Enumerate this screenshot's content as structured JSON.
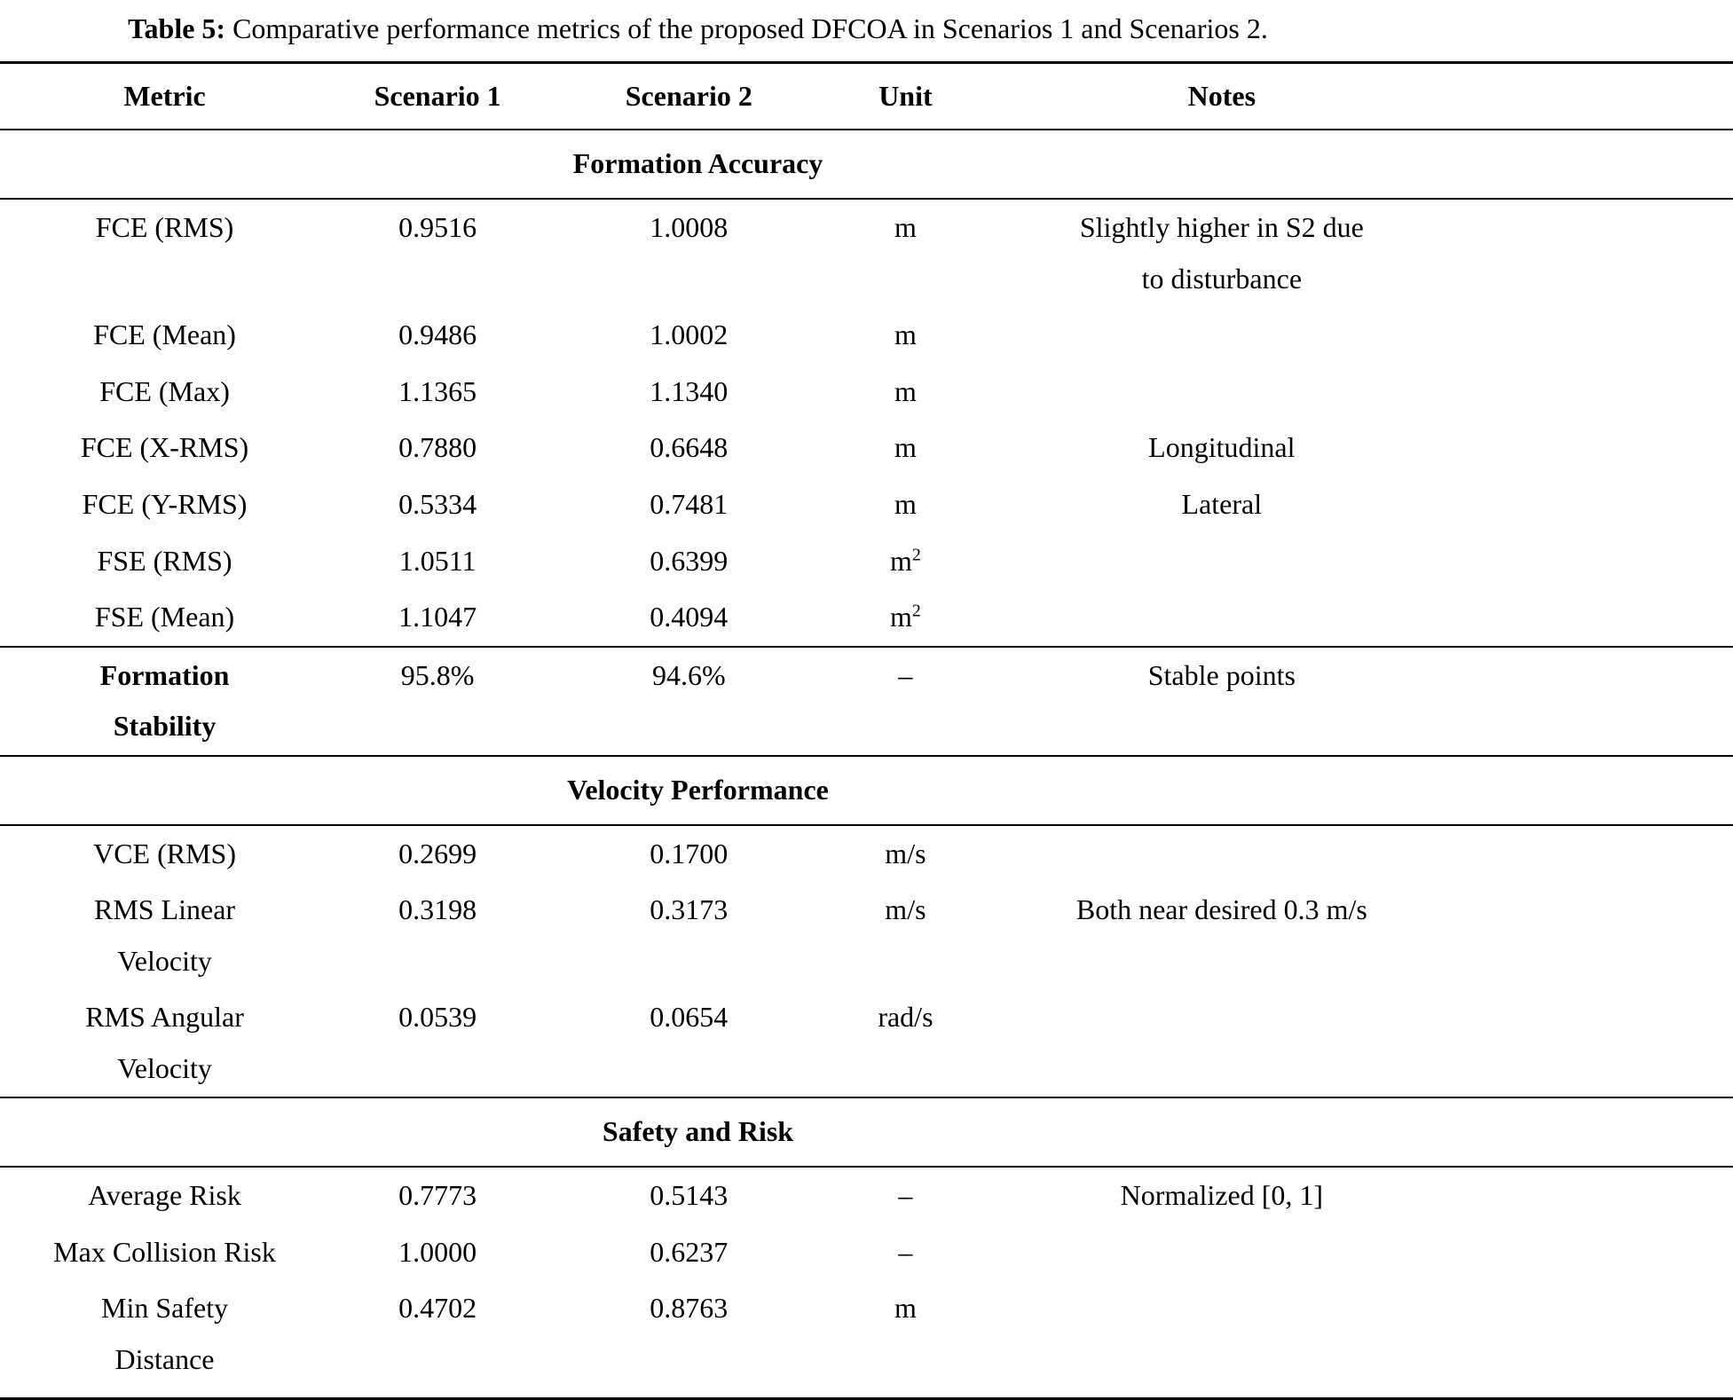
{
  "caption": {
    "label": "Table 5:",
    "text": "Comparative performance metrics of the proposed DFCOA in Scenarios 1 and Scenarios 2."
  },
  "columns": [
    "Metric",
    "Scenario 1",
    "Scenario 2",
    "Unit",
    "Notes"
  ],
  "sections": [
    {
      "title": "Formation Accuracy",
      "rows": [
        {
          "metric": "FCE (RMS)",
          "s1": "0.9516",
          "s2": "1.0008",
          "unit": "m",
          "note": "Slightly higher in S2 due\nto disturbance"
        },
        {
          "metric": "FCE (Mean)",
          "s1": "0.9486",
          "s2": "1.0002",
          "unit": "m",
          "note": ""
        },
        {
          "metric": "FCE (Max)",
          "s1": "1.1365",
          "s2": "1.1340",
          "unit": "m",
          "note": ""
        },
        {
          "metric": "FCE (X-RMS)",
          "s1": "0.7880",
          "s2": "0.6648",
          "unit": "m",
          "note": "Longitudinal"
        },
        {
          "metric": "FCE (Y-RMS)",
          "s1": "0.5334",
          "s2": "0.7481",
          "unit": "m",
          "note": "Lateral"
        },
        {
          "metric": "FSE (RMS)",
          "s1": "1.0511",
          "s2": "0.6399",
          "unit": "m²",
          "note": ""
        },
        {
          "metric": "FSE (Mean)",
          "s1": "1.1047",
          "s2": "0.4094",
          "unit": "m²",
          "note": ""
        }
      ]
    },
    {
      "title": null,
      "rows": [
        {
          "metric": "Formation\nStability",
          "bold_metric": true,
          "s1": "95.8%",
          "s2": "94.6%",
          "unit": "–",
          "note": "Stable points"
        }
      ]
    },
    {
      "title": "Velocity Performance",
      "rows": [
        {
          "metric": "VCE (RMS)",
          "s1": "0.2699",
          "s2": "0.1700",
          "unit": "m/s",
          "note": ""
        },
        {
          "metric": "RMS Linear\nVelocity",
          "s1": "0.3198",
          "s2": "0.3173",
          "unit": "m/s",
          "note": "Both near desired 0.3 m/s"
        },
        {
          "metric": "RMS Angular\nVelocity",
          "s1": "0.0539",
          "s2": "0.0654",
          "unit": "rad/s",
          "note": ""
        }
      ]
    },
    {
      "title": "Safety and Risk",
      "rows": [
        {
          "metric": "Average Risk",
          "s1": "0.7773",
          "s2": "0.5143",
          "unit": "–",
          "note": "Normalized [0, 1]"
        },
        {
          "metric": "Max Collision Risk",
          "s1": "1.0000",
          "s2": "0.6237",
          "unit": "–",
          "note": ""
        },
        {
          "metric": "Min Safety\nDistance",
          "s1": "0.4702",
          "s2": "0.8763",
          "unit": "m",
          "note": ""
        }
      ]
    }
  ]
}
